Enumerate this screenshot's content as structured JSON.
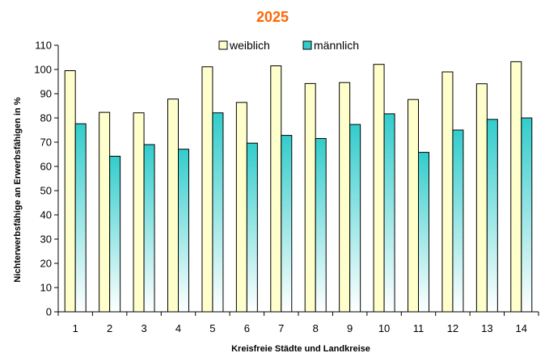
{
  "chart_data": {
    "type": "bar",
    "title": "2025",
    "xlabel": "Kreisfreie Städte und Landkreise",
    "ylabel": "Nichterwerbsfähige an Erwerbsfähigen in %",
    "categories": [
      "1",
      "2",
      "3",
      "4",
      "5",
      "6",
      "7",
      "8",
      "9",
      "10",
      "11",
      "12",
      "13",
      "14"
    ],
    "ylim": [
      0,
      110
    ],
    "yticks": [
      0,
      10,
      20,
      30,
      40,
      50,
      60,
      70,
      80,
      90,
      100,
      110
    ],
    "grid": false,
    "legend_position": "top-center",
    "series": [
      {
        "name": "weiblich",
        "values": [
          99.5,
          82.3,
          82.1,
          87.8,
          101.1,
          86.4,
          101.5,
          94.2,
          94.6,
          102.1,
          87.6,
          99.0,
          94.1,
          103.2
        ]
      },
      {
        "name": "männlich",
        "values": [
          77.6,
          64.2,
          69.0,
          67.1,
          82.1,
          69.6,
          72.8,
          71.5,
          77.3,
          81.7,
          65.8,
          75.0,
          79.4,
          80.0
        ]
      }
    ]
  },
  "colors": {
    "title": "#ff6600",
    "weiblich_fill": "#ffffcc",
    "maennlich_top": "#33cccc",
    "maennlich_bottom": "#ffffff",
    "bar_stroke": "#000000"
  }
}
